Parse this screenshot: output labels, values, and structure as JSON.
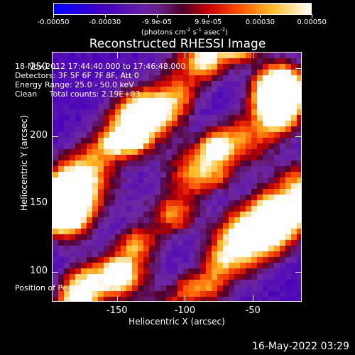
{
  "colorbar": {
    "tick_labels": [
      "-0.00050",
      "-0.00030",
      "-9.9e-05",
      "9.9e-05",
      "0.00030",
      "0.00050"
    ],
    "units_prefix": "(photons cm",
    "units_sup1": "-2",
    "units_mid1": " s",
    "units_sup2": "-1",
    "units_mid2": " asec",
    "units_sup3": "-2",
    "units_suffix": ")",
    "range": [
      -0.0005,
      0.0005
    ]
  },
  "plot": {
    "title": "Reconstructed RHESSI Image",
    "info_lines": [
      "18-Nov-2012 17:44:40.000 to 17:46:48.000",
      "Detectors: 3F 5F 6F 7F 8F, Att 0",
      "Energy Range: 25.0 - 50.0 keV",
      "Clean     Total counts: 2.19E+03"
    ],
    "peak_label": "Position of Peak = [-80,222]",
    "xlabel": "Heliocentric X (arcsec)",
    "ylabel": "Heliocentric Y (arcsec)",
    "xticks": [
      "-150",
      "-100",
      "-50"
    ],
    "yticks": [
      "250",
      "200",
      "150",
      "100"
    ],
    "xlim": [
      -198,
      -14
    ],
    "ylim": [
      78,
      262
    ],
    "colormap": "heat (blue-purple-red-yellow-white)"
  },
  "footer": {
    "timestamp": "16-May-2022 03:29"
  }
}
